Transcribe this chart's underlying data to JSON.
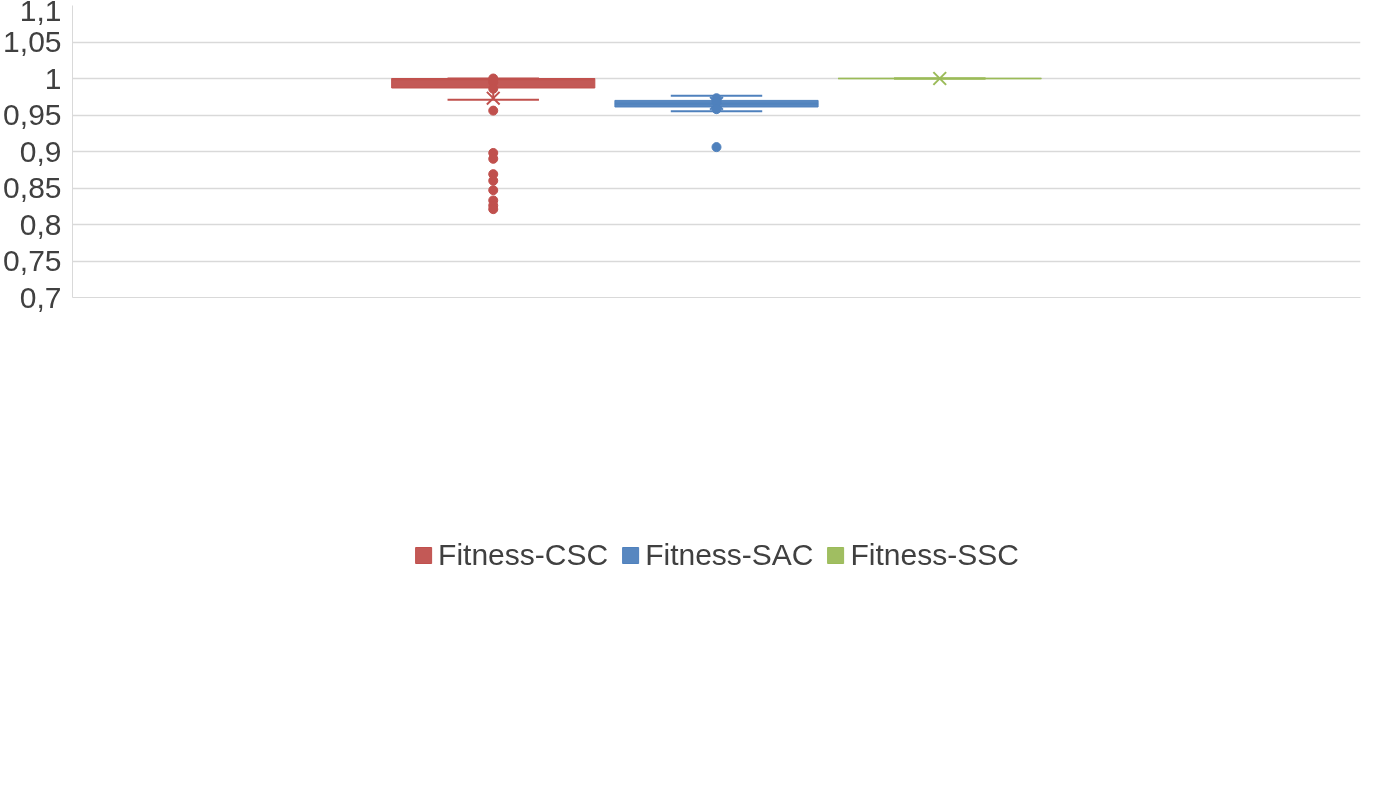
{
  "chart_data": {
    "type": "box",
    "categories": [
      null
    ],
    "series": [
      {
        "name": "Fitness-CSC",
        "color": "#c0504d",
        "boxes": [
          {
            "low": 0.971,
            "q1": 0.987,
            "median": 0.999,
            "q3": 1.0,
            "high": 1.0,
            "mean": 0.973,
            "outliers": [
              1.0,
              0.995,
              0.986,
              0.956,
              0.898,
              0.89,
              0.869,
              0.86,
              0.847,
              0.833,
              0.826,
              0.821
            ]
          }
        ]
      },
      {
        "name": "Fitness-SAC",
        "color": "#4f81bd",
        "boxes": [
          {
            "low": 0.955,
            "q1": 0.961,
            "median": 0.9655,
            "q3": 0.97,
            "high": 0.9765,
            "mean": 0.966,
            "outliers": [
              0.973,
              0.968,
              0.958,
              0.906
            ]
          }
        ]
      },
      {
        "name": "Fitness-SSC",
        "color": "#9bbb59",
        "boxes": [
          {
            "low": 1.0,
            "q1": 1.0,
            "median": 1.0,
            "q3": 1.0,
            "high": 1.0,
            "mean": 1.0
          }
        ]
      }
    ],
    "ylim": [
      0.7,
      1.1
    ],
    "yticks": [
      {
        "value": 0.7,
        "label": "0,7"
      },
      {
        "value": 0.75,
        "label": "0,75"
      },
      {
        "value": 0.8,
        "label": "0,8"
      },
      {
        "value": 0.85,
        "label": "0,85"
      },
      {
        "value": 0.9,
        "label": "0,9"
      },
      {
        "value": 0.95,
        "label": "0,95"
      },
      {
        "value": 1.0,
        "label": "1"
      },
      {
        "value": 1.05,
        "label": "1,05"
      },
      {
        "value": 1.1,
        "label": "1,1"
      }
    ],
    "grid": "y",
    "legend": "bottom"
  }
}
